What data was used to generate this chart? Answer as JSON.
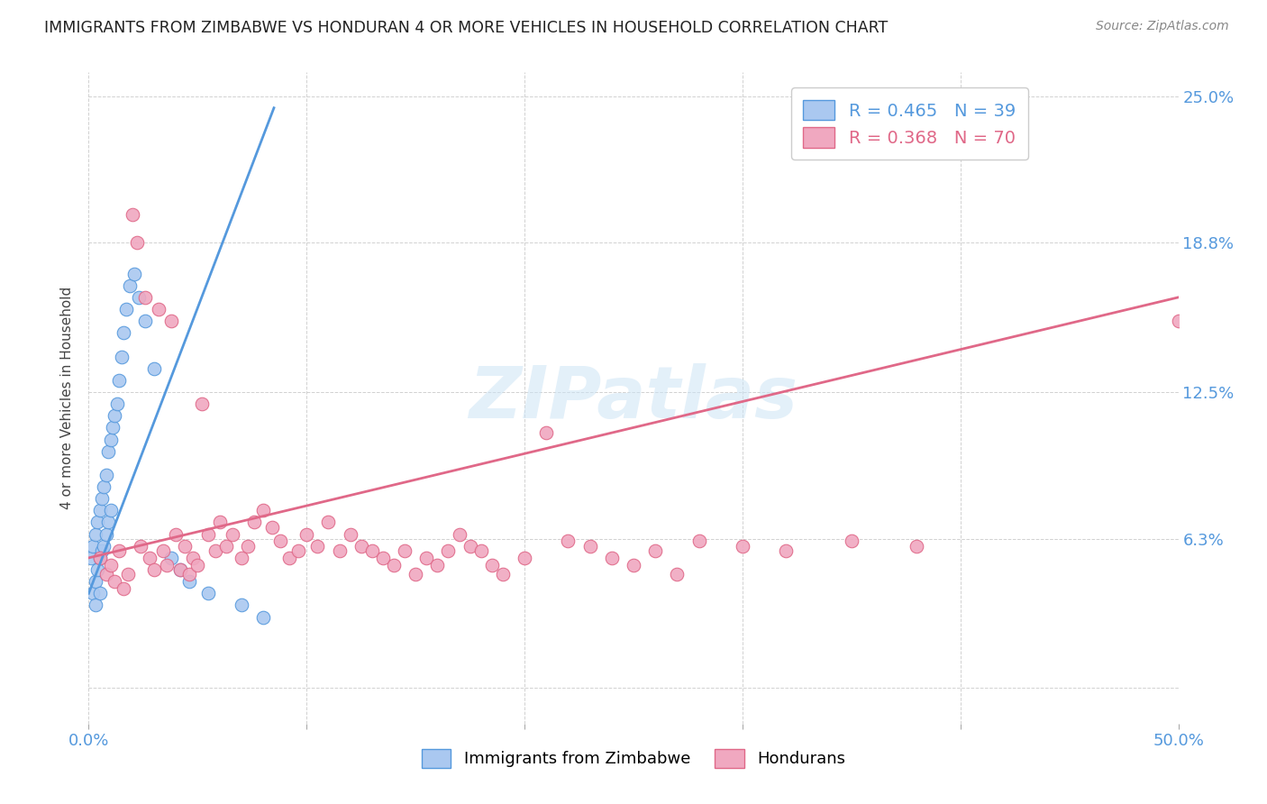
{
  "title": "IMMIGRANTS FROM ZIMBABWE VS HONDURAN 4 OR MORE VEHICLES IN HOUSEHOLD CORRELATION CHART",
  "source": "Source: ZipAtlas.com",
  "ylabel": "4 or more Vehicles in Household",
  "x_min": 0.0,
  "x_max": 0.5,
  "y_min": -0.015,
  "y_max": 0.26,
  "blue_color": "#aac8f0",
  "blue_line_color": "#5599dd",
  "pink_color": "#f0a8c0",
  "pink_line_color": "#e06888",
  "blue_scatter_x": [
    0.001,
    0.002,
    0.002,
    0.003,
    0.003,
    0.003,
    0.004,
    0.004,
    0.005,
    0.005,
    0.005,
    0.006,
    0.006,
    0.007,
    0.007,
    0.008,
    0.008,
    0.009,
    0.009,
    0.01,
    0.01,
    0.011,
    0.012,
    0.013,
    0.014,
    0.015,
    0.016,
    0.017,
    0.019,
    0.021,
    0.023,
    0.026,
    0.03,
    0.038,
    0.042,
    0.046,
    0.055,
    0.07,
    0.08
  ],
  "blue_scatter_y": [
    0.055,
    0.06,
    0.04,
    0.065,
    0.045,
    0.035,
    0.07,
    0.05,
    0.075,
    0.055,
    0.04,
    0.08,
    0.058,
    0.085,
    0.06,
    0.09,
    0.065,
    0.1,
    0.07,
    0.105,
    0.075,
    0.11,
    0.115,
    0.12,
    0.13,
    0.14,
    0.15,
    0.16,
    0.17,
    0.175,
    0.165,
    0.155,
    0.135,
    0.055,
    0.05,
    0.045,
    0.04,
    0.035,
    0.03
  ],
  "pink_scatter_x": [
    0.005,
    0.008,
    0.01,
    0.012,
    0.014,
    0.016,
    0.018,
    0.02,
    0.022,
    0.024,
    0.026,
    0.028,
    0.03,
    0.032,
    0.034,
    0.036,
    0.038,
    0.04,
    0.042,
    0.044,
    0.046,
    0.048,
    0.05,
    0.052,
    0.055,
    0.058,
    0.06,
    0.063,
    0.066,
    0.07,
    0.073,
    0.076,
    0.08,
    0.084,
    0.088,
    0.092,
    0.096,
    0.1,
    0.105,
    0.11,
    0.115,
    0.12,
    0.125,
    0.13,
    0.135,
    0.14,
    0.145,
    0.15,
    0.155,
    0.16,
    0.165,
    0.17,
    0.175,
    0.18,
    0.185,
    0.19,
    0.2,
    0.21,
    0.22,
    0.23,
    0.24,
    0.25,
    0.26,
    0.27,
    0.28,
    0.3,
    0.32,
    0.35,
    0.38,
    0.5
  ],
  "pink_scatter_y": [
    0.055,
    0.048,
    0.052,
    0.045,
    0.058,
    0.042,
    0.048,
    0.2,
    0.188,
    0.06,
    0.165,
    0.055,
    0.05,
    0.16,
    0.058,
    0.052,
    0.155,
    0.065,
    0.05,
    0.06,
    0.048,
    0.055,
    0.052,
    0.12,
    0.065,
    0.058,
    0.07,
    0.06,
    0.065,
    0.055,
    0.06,
    0.07,
    0.075,
    0.068,
    0.062,
    0.055,
    0.058,
    0.065,
    0.06,
    0.07,
    0.058,
    0.065,
    0.06,
    0.058,
    0.055,
    0.052,
    0.058,
    0.048,
    0.055,
    0.052,
    0.058,
    0.065,
    0.06,
    0.058,
    0.052,
    0.048,
    0.055,
    0.108,
    0.062,
    0.06,
    0.055,
    0.052,
    0.058,
    0.048,
    0.062,
    0.06,
    0.058,
    0.062,
    0.06,
    0.155
  ],
  "blue_trend_x": [
    0.0,
    0.085
  ],
  "blue_trend_y_start": 0.04,
  "blue_trend_y_end": 0.245,
  "pink_trend_x": [
    0.0,
    0.5
  ],
  "pink_trend_y_start": 0.055,
  "pink_trend_y_end": 0.165
}
